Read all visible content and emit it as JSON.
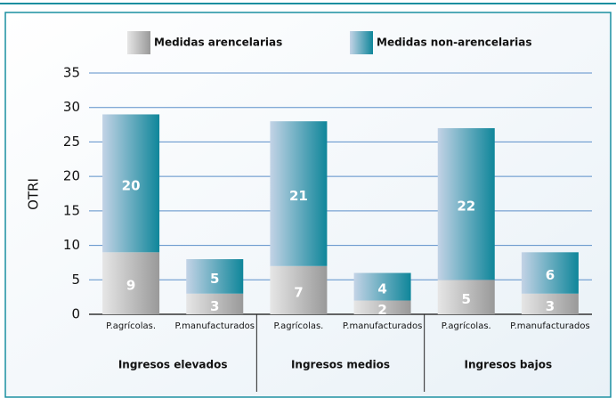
{
  "chart_data": {
    "type": "stacked_bar",
    "y_label": "OTRI",
    "groups": [
      "Ingresos elevados",
      "Ingresos medios",
      "Ingresos bajos"
    ],
    "categories": [
      "P.agrícolas.",
      "P.manufacturados",
      "P.agrícolas.",
      "P.manufacturados",
      "P.agrícolas.",
      "P.manufacturados"
    ],
    "series": [
      {
        "name": "Medidas arencelarias",
        "color": [
          "#e6e6e6",
          "#999999"
        ],
        "values": [
          9,
          3,
          7,
          2,
          5,
          3
        ]
      },
      {
        "name": "Medidas non-arencelarias",
        "color": [
          "#c3d3e6",
          "#0f869a"
        ],
        "values": [
          20,
          5,
          21,
          4,
          22,
          6
        ]
      }
    ],
    "ylim": [
      0,
      35
    ],
    "yticks": [
      0,
      5,
      10,
      15,
      20,
      25,
      30,
      35
    ],
    "grid": true
  }
}
